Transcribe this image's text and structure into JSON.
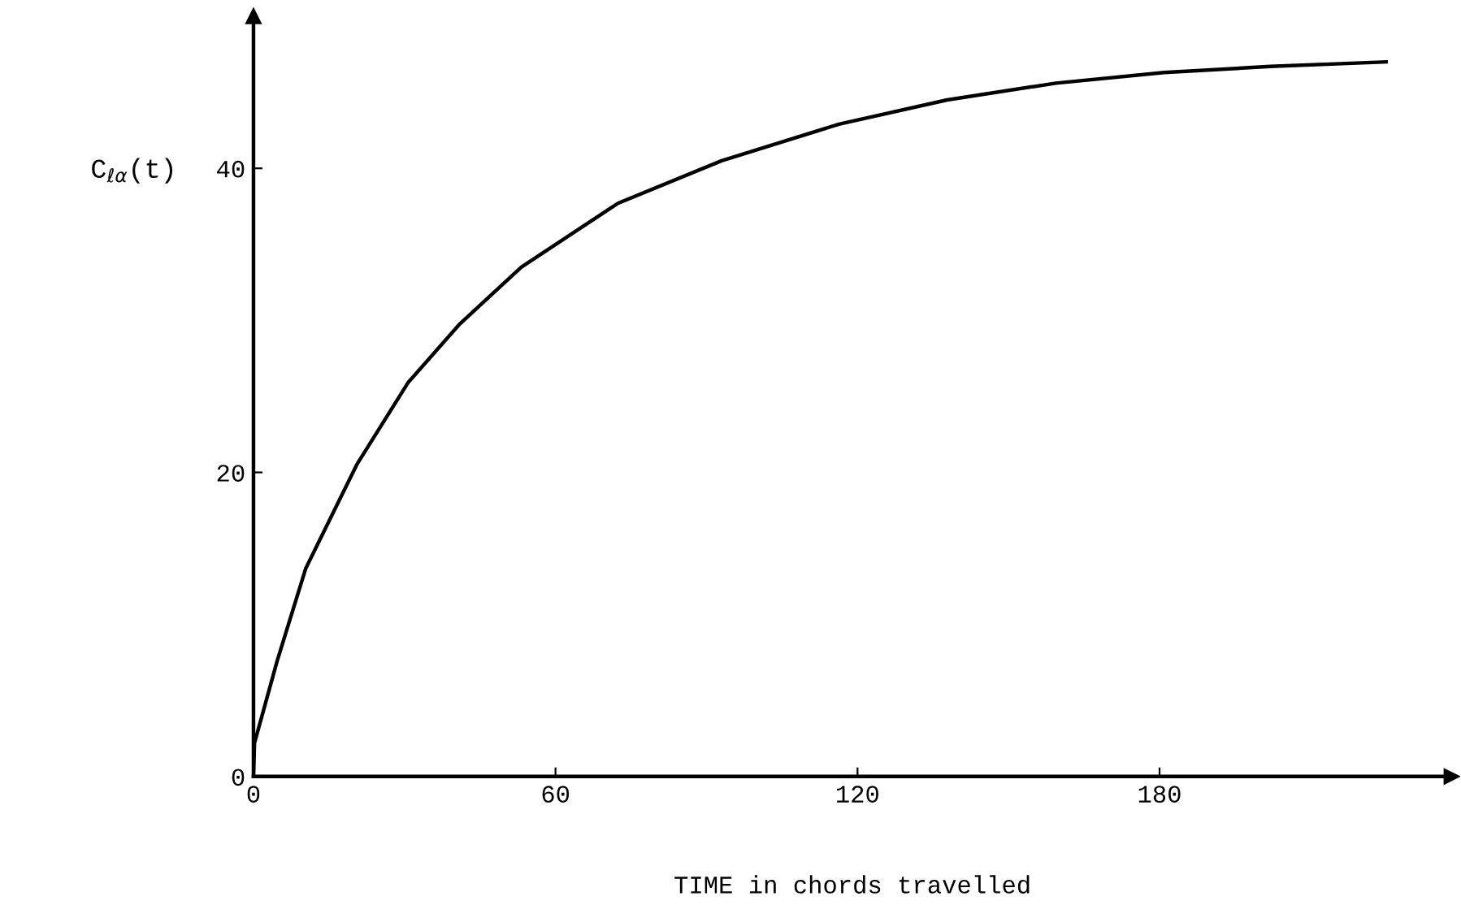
{
  "chart_data": {
    "type": "line",
    "xlabel": "TIME in chords travelled",
    "ylabel": "C$_{ℓα}$(t)",
    "series": [
      {
        "color": "#000000",
        "x": [
          0,
          0.2,
          4.7,
          10.4,
          20.5,
          30.7,
          40.8,
          53.2,
          72.4,
          93,
          116.3,
          137.8,
          159.4,
          180.9,
          202,
          225
        ],
        "values": [
          0,
          2.2,
          7.6,
          13.7,
          20.5,
          25.9,
          29.7,
          33.5,
          37.7,
          40.5,
          42.9,
          44.5,
          45.6,
          46.3,
          46.7,
          47.0
        ]
      }
    ],
    "xlim": [
      0,
      238
    ],
    "ylim": [
      0,
      50
    ],
    "xticks": [
      0,
      60,
      120,
      180
    ],
    "yticks": [
      0,
      20,
      40
    ],
    "grid": false,
    "legend": false,
    "marker": "none",
    "line_style": "solid"
  }
}
